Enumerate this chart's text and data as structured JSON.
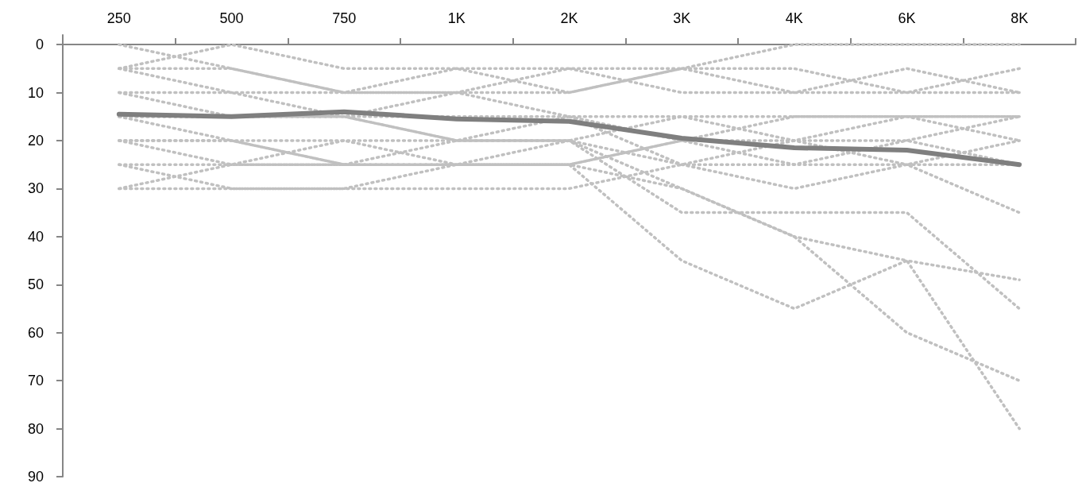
{
  "chart_data": {
    "type": "line",
    "categories": [
      "250",
      "500",
      "750",
      "1K",
      "2K",
      "3K",
      "4K",
      "6K",
      "8K"
    ],
    "ylim": [
      90,
      -2
    ],
    "yticks": [
      0,
      10,
      20,
      30,
      40,
      50,
      60,
      70,
      80,
      90
    ],
    "grid": false,
    "marker": "none",
    "line_style": "dotted",
    "series": [
      {
        "color": "#c0c0c0",
        "values": [
          5,
          0,
          5,
          5,
          10,
          5,
          0,
          0,
          0
        ]
      },
      {
        "color": "#c0c0c0",
        "values": [
          10,
          10,
          10,
          5,
          5,
          5,
          5,
          10,
          5
        ]
      },
      {
        "color": "#c0c0c0",
        "values": [
          0,
          5,
          10,
          10,
          10,
          5,
          10,
          5,
          10
        ]
      },
      {
        "color": "#c0c0c0",
        "values": [
          15,
          15,
          15,
          10,
          5,
          10,
          10,
          10,
          10
        ]
      },
      {
        "color": "#c0c0c0",
        "values": [
          10,
          15,
          15,
          20,
          15,
          15,
          15,
          15,
          15
        ]
      },
      {
        "color": "#c0c0c0",
        "values": [
          20,
          20,
          20,
          25,
          25,
          20,
          20,
          15,
          20
        ]
      },
      {
        "color": "#c0c0c0",
        "values": [
          25,
          25,
          25,
          25,
          25,
          20,
          15,
          15,
          15
        ]
      },
      {
        "color": "#c0c0c0",
        "values": [
          30,
          30,
          30,
          30,
          30,
          25,
          20,
          20,
          25
        ]
      },
      {
        "color": "#c0c0c0",
        "values": [
          20,
          25,
          20,
          20,
          20,
          15,
          20,
          25,
          25
        ]
      },
      {
        "color": "#c0c0c0",
        "values": [
          25,
          30,
          30,
          25,
          20,
          25,
          30,
          25,
          35
        ]
      },
      {
        "color": "#c0c0c0",
        "values": [
          5,
          10,
          15,
          20,
          20,
          35,
          35,
          35,
          55
        ]
      },
      {
        "color": "#c0c0c0",
        "values": [
          15,
          20,
          25,
          25,
          25,
          45,
          55,
          45,
          49
        ]
      },
      {
        "color": "#c0c0c0",
        "values": [
          30,
          25,
          25,
          20,
          20,
          30,
          40,
          60,
          70
        ]
      },
      {
        "color": "#c0c0c0",
        "values": [
          20,
          20,
          25,
          25,
          25,
          30,
          40,
          45,
          80
        ]
      },
      {
        "color": "#c0c0c0",
        "values": [
          15,
          15,
          15,
          15,
          15,
          25,
          25,
          20,
          15
        ]
      },
      {
        "color": "#c0c0c0",
        "values": [
          5,
          5,
          10,
          10,
          15,
          20,
          25,
          25,
          20
        ]
      },
      {
        "color": "#7f7f7f",
        "line_style": "solid",
        "values": [
          14.5,
          15,
          14,
          15.5,
          16,
          19.5,
          21.5,
          22,
          25
        ]
      }
    ]
  }
}
